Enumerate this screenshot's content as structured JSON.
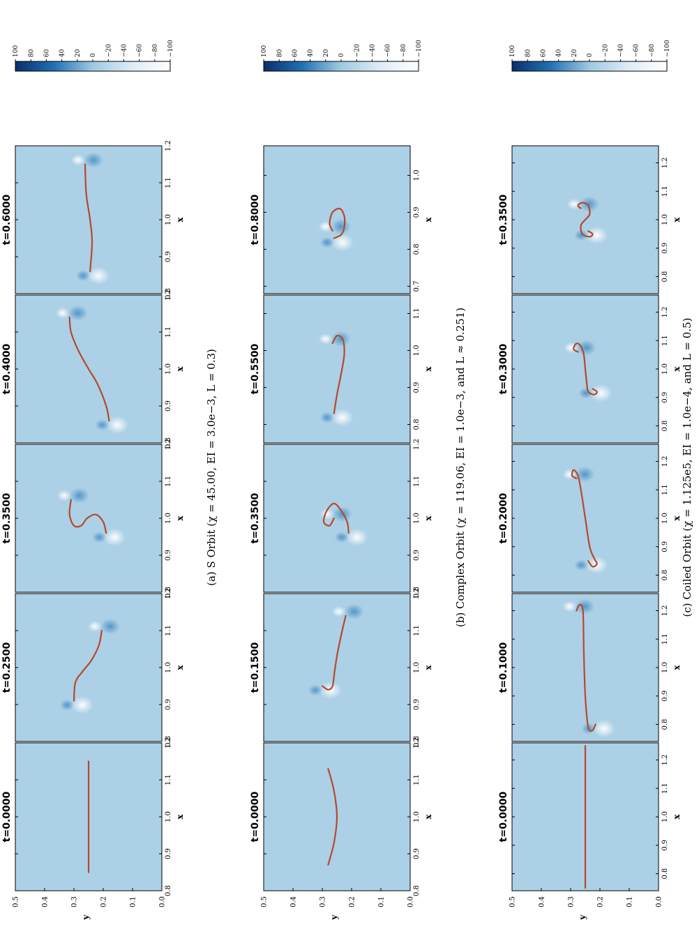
{
  "figure": {
    "x_axis_label": "x",
    "y_axis_label": "y",
    "y_ticks": [
      "0.0",
      "0.1",
      "0.2",
      "0.3",
      "0.4",
      "0.5"
    ],
    "colorbar_ticks": [
      "100",
      "80",
      "60",
      "40",
      "20",
      "0",
      "−20",
      "−40",
      "−60",
      "−80",
      "−100"
    ],
    "colors": {
      "curve": "#b5492a",
      "field_base": "#acd0e6",
      "outline": "#000000"
    }
  },
  "chart_data": [
    {
      "type": "heatmap",
      "caption": "(a) S Orbit (χ = 45.00, EI = 3.0e−3, L = 0.3)",
      "colorbar_range": [
        -100,
        100
      ],
      "panels": [
        {
          "title": "t=0.0000",
          "x_ticks": [
            "0.8",
            "0.9",
            "1.0",
            "1.1",
            "1.2"
          ],
          "x_range": [
            0.8,
            1.2
          ],
          "y_range": [
            0,
            0.5
          ],
          "filament": [
            [
              0.85,
              0.25
            ],
            [
              0.95,
              0.25
            ],
            [
              1.05,
              0.25
            ],
            [
              1.15,
              0.25
            ]
          ]
        },
        {
          "title": "t=0.2500",
          "x_ticks": [
            "0.8",
            "0.9",
            "1.0",
            "1.1",
            "1.2"
          ],
          "x_range": [
            0.8,
            1.2
          ],
          "y_range": [
            0,
            0.5
          ],
          "filament": [
            [
              0.91,
              0.3
            ],
            [
              0.96,
              0.295
            ],
            [
              0.99,
              0.27
            ],
            [
              1.02,
              0.24
            ],
            [
              1.06,
              0.215
            ],
            [
              1.1,
              0.205
            ]
          ]
        },
        {
          "title": "t=0.3500",
          "x_ticks": [
            "0.8",
            "0.9",
            "1.0",
            "1.1",
            "1.2"
          ],
          "x_range": [
            0.8,
            1.2
          ],
          "y_range": [
            0,
            0.5
          ],
          "filament": [
            [
              0.96,
              0.19
            ],
            [
              0.99,
              0.2
            ],
            [
              1.01,
              0.225
            ],
            [
              1.0,
              0.255
            ],
            [
              0.98,
              0.275
            ],
            [
              0.98,
              0.3
            ],
            [
              1.01,
              0.315
            ],
            [
              1.05,
              0.31
            ]
          ]
        },
        {
          "title": "t=0.4000",
          "x_ticks": [
            "0.8",
            "0.9",
            "1.0",
            "1.1",
            "1.2"
          ],
          "x_range": [
            0.8,
            1.2
          ],
          "y_range": [
            0,
            0.5
          ],
          "filament": [
            [
              0.86,
              0.18
            ],
            [
              0.9,
              0.19
            ],
            [
              0.96,
              0.22
            ],
            [
              1.0,
              0.25
            ],
            [
              1.05,
              0.285
            ],
            [
              1.1,
              0.31
            ],
            [
              1.14,
              0.315
            ]
          ]
        },
        {
          "title": "t=0.6000",
          "x_ticks": [
            "0.8",
            "0.9",
            "1.0",
            "1.1",
            "1.2"
          ],
          "x_range": [
            0.8,
            1.2
          ],
          "y_range": [
            0,
            0.5
          ],
          "filament": [
            [
              0.86,
              0.245
            ],
            [
              0.94,
              0.238
            ],
            [
              1.0,
              0.245
            ],
            [
              1.07,
              0.258
            ],
            [
              1.15,
              0.262
            ]
          ]
        }
      ]
    },
    {
      "type": "heatmap",
      "caption": "(b) Complex Orbit (χ = 119.06, EI = 1.0e−3, and L ≈ 0.251)",
      "colorbar_range": [
        -100,
        100
      ],
      "panels": [
        {
          "title": "t=0.0000",
          "x_ticks": [
            "0.8",
            "0.9",
            "1.0",
            "1.1",
            "1.2"
          ],
          "x_range": [
            0.8,
            1.2
          ],
          "y_range": [
            0,
            0.5
          ],
          "filament": [
            [
              0.87,
              0.28
            ],
            [
              0.93,
              0.26
            ],
            [
              1.0,
              0.25
            ],
            [
              1.07,
              0.26
            ],
            [
              1.13,
              0.28
            ]
          ]
        },
        {
          "title": "t=0.1500",
          "x_ticks": [
            "0.8",
            "0.9",
            "1.0",
            "1.1",
            "1.2"
          ],
          "x_range": [
            0.8,
            1.2
          ],
          "y_range": [
            0,
            0.5
          ],
          "filament": [
            [
              0.95,
              0.3
            ],
            [
              0.94,
              0.28
            ],
            [
              0.95,
              0.265
            ],
            [
              0.99,
              0.258
            ],
            [
              1.04,
              0.248
            ],
            [
              1.1,
              0.232
            ],
            [
              1.14,
              0.22
            ]
          ]
        },
        {
          "title": "t=0.3500",
          "x_ticks": [
            "0.8",
            "0.9",
            "1.0",
            "1.1",
            "1.2"
          ],
          "x_range": [
            0.8,
            1.2
          ],
          "y_range": [
            0,
            0.5
          ],
          "filament": [
            [
              0.96,
              0.21
            ],
            [
              0.99,
              0.215
            ],
            [
              1.02,
              0.235
            ],
            [
              1.04,
              0.26
            ],
            [
              1.02,
              0.285
            ],
            [
              0.99,
              0.295
            ],
            [
              0.98,
              0.275
            ],
            [
              1.0,
              0.26
            ]
          ]
        },
        {
          "title": "t=0.5500",
          "x_ticks": [
            "0.8",
            "0.9",
            "1.0",
            "1.1"
          ],
          "x_range": [
            0.75,
            1.15
          ],
          "y_range": [
            0,
            0.5
          ],
          "filament": [
            [
              0.83,
              0.26
            ],
            [
              0.88,
              0.25
            ],
            [
              0.94,
              0.235
            ],
            [
              0.99,
              0.225
            ],
            [
              1.03,
              0.23
            ],
            [
              1.04,
              0.25
            ],
            [
              1.02,
              0.265
            ]
          ]
        },
        {
          "title": "t=0.8000",
          "x_ticks": [
            "0.7",
            "0.8",
            "0.9",
            "1.0"
          ],
          "x_range": [
            0.68,
            1.08
          ],
          "y_range": [
            0,
            0.5
          ],
          "filament": [
            [
              0.83,
              0.26
            ],
            [
              0.84,
              0.235
            ],
            [
              0.86,
              0.225
            ],
            [
              0.89,
              0.225
            ],
            [
              0.91,
              0.24
            ],
            [
              0.9,
              0.265
            ],
            [
              0.87,
              0.275
            ],
            [
              0.85,
              0.265
            ]
          ]
        }
      ]
    },
    {
      "type": "heatmap",
      "caption": "(c) Coiled Orbit (χ = 1.125e5, EI = 1.0e−4, and L = 0.5)",
      "colorbar_range": [
        -100,
        100
      ],
      "panels": [
        {
          "title": "t=0.0000",
          "x_ticks": [
            "0.8",
            "0.9",
            "1.0",
            "1.1",
            "1.2"
          ],
          "x_range": [
            0.74,
            1.26
          ],
          "y_range": [
            0,
            0.5
          ],
          "filament": [
            [
              0.75,
              0.25
            ],
            [
              0.9,
              0.25
            ],
            [
              1.05,
              0.25
            ],
            [
              1.25,
              0.25
            ]
          ]
        },
        {
          "title": "t=0.1000",
          "x_ticks": [
            "0.8",
            "0.9",
            "1.0",
            "1.1",
            "1.2"
          ],
          "x_range": [
            0.74,
            1.26
          ],
          "y_range": [
            0,
            0.5
          ],
          "filament": [
            [
              0.8,
              0.215
            ],
            [
              0.78,
              0.225
            ],
            [
              0.79,
              0.24
            ],
            [
              0.9,
              0.25
            ],
            [
              1.05,
              0.255
            ],
            [
              1.2,
              0.258
            ],
            [
              1.22,
              0.27
            ],
            [
              1.2,
              0.28
            ]
          ]
        },
        {
          "title": "t=0.2000",
          "x_ticks": [
            "0.8",
            "0.9",
            "1.0",
            "1.1",
            "1.2"
          ],
          "x_range": [
            0.74,
            1.26
          ],
          "y_range": [
            0,
            0.5
          ],
          "filament": [
            [
              0.85,
              0.24
            ],
            [
              0.83,
              0.225
            ],
            [
              0.84,
              0.21
            ],
            [
              0.86,
              0.22
            ],
            [
              0.9,
              0.235
            ],
            [
              1.0,
              0.25
            ],
            [
              1.1,
              0.265
            ],
            [
              1.15,
              0.275
            ],
            [
              1.17,
              0.29
            ],
            [
              1.15,
              0.295
            ],
            [
              1.14,
              0.28
            ]
          ]
        },
        {
          "title": "t=0.3000",
          "x_ticks": [
            "0.8",
            "0.9",
            "1.0",
            "1.1",
            "1.2"
          ],
          "x_range": [
            0.74,
            1.26
          ],
          "y_range": [
            0,
            0.5
          ],
          "filament": [
            [
              0.93,
              0.225
            ],
            [
              0.92,
              0.21
            ],
            [
              0.91,
              0.22
            ],
            [
              0.92,
              0.24
            ],
            [
              0.95,
              0.245
            ],
            [
              1.0,
              0.25
            ],
            [
              1.05,
              0.255
            ],
            [
              1.08,
              0.265
            ],
            [
              1.09,
              0.28
            ],
            [
              1.07,
              0.29
            ],
            [
              1.06,
              0.275
            ]
          ]
        },
        {
          "title": "t=0.3500",
          "x_ticks": [
            "0.8",
            "0.9",
            "1.0",
            "1.1",
            "1.2"
          ],
          "x_range": [
            0.74,
            1.26
          ],
          "y_range": [
            0,
            0.5
          ],
          "filament": [
            [
              0.96,
              0.24
            ],
            [
              0.95,
              0.225
            ],
            [
              0.94,
              0.235
            ],
            [
              0.95,
              0.26
            ],
            [
              0.98,
              0.265
            ],
            [
              1.0,
              0.25
            ],
            [
              1.02,
              0.235
            ],
            [
              1.05,
              0.24
            ],
            [
              1.06,
              0.26
            ],
            [
              1.05,
              0.275
            ],
            [
              1.04,
              0.265
            ]
          ]
        }
      ]
    }
  ]
}
